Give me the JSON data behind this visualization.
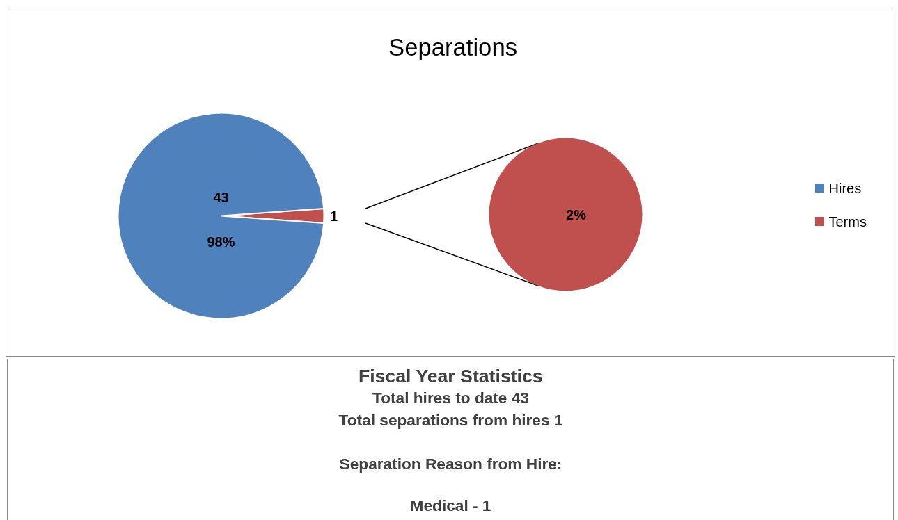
{
  "chart_data": {
    "type": "pie",
    "title": "Separations",
    "categories": [
      "Hires",
      "Terms"
    ],
    "values": [
      43,
      1
    ],
    "colors": [
      "#4f81bd",
      "#c0504d"
    ],
    "value_labels": [
      "43\n98%",
      "1"
    ],
    "legend": "right",
    "annotations": [
      {
        "text": "2%",
        "x": "Terms"
      },
      "Fiscal Year Statistics",
      "Total hires to date 43",
      "Total separations from hires 1",
      "Separation Reason from Hire:",
      "Medical - 1"
    ]
  }
}
